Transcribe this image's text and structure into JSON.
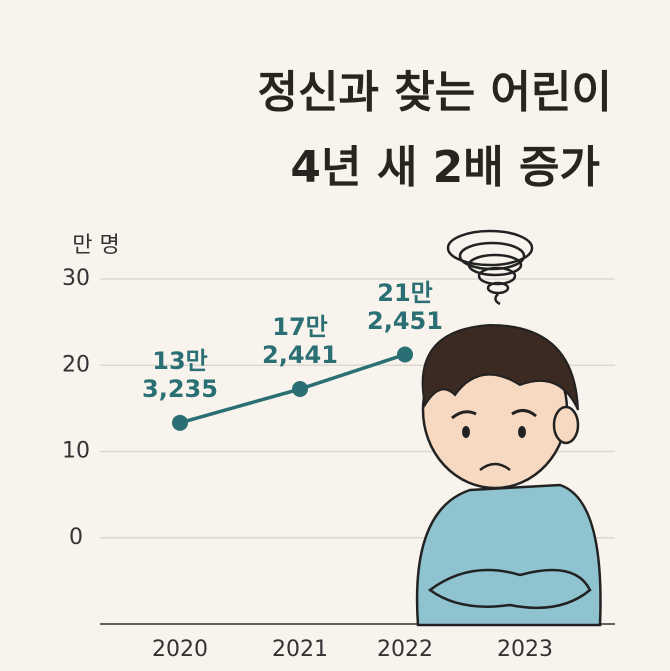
{
  "chart_data": {
    "type": "line",
    "title": [
      "정신과 찾는 어린이",
      "4년 새 2배 증가"
    ],
    "y_label": "만 명",
    "categories": [
      "2020",
      "2021",
      "2022",
      "2023"
    ],
    "values": [
      13.3235,
      17.2441,
      21.2451,
      null
    ],
    "value_labels": [
      "13만\n3,235",
      "17만\n2,441",
      "21만\n2,451",
      null
    ],
    "color": "#2a6f73",
    "ylim": [
      -10,
      30
    ],
    "yticks": [
      0,
      10,
      20,
      30
    ],
    "grid": true
  }
}
